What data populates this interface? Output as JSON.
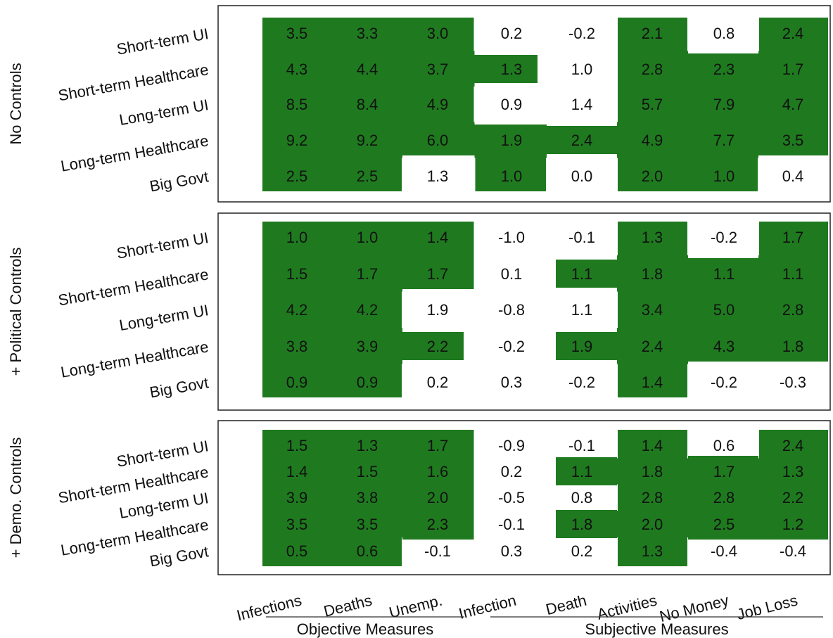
{
  "chart_data": {
    "type": "heatmap",
    "title": "",
    "columns": [
      "Infections",
      "Deaths",
      "Unemp.",
      "Infection",
      "Death",
      "Activities",
      "No Money",
      "Job Loss"
    ],
    "column_groups": [
      {
        "label": "Objective Measures",
        "columns": [
          "Infections",
          "Deaths",
          "Unemp."
        ]
      },
      {
        "label": "Subjective Measures",
        "columns": [
          "Infection",
          "Death",
          "Activities",
          "No Money",
          "Job Loss"
        ]
      }
    ],
    "rows": [
      "Short-term UI",
      "Short-term Healthcare",
      "Long-term UI",
      "Long-term Healthcare",
      "Big Govt"
    ],
    "highlight_color": "#1f7a1f",
    "panels": [
      {
        "label": "No Controls",
        "values": [
          [
            3.5,
            3.3,
            3.0,
            0.2,
            -0.2,
            2.1,
            0.8,
            2.4
          ],
          [
            4.3,
            4.4,
            3.7,
            1.3,
            1.0,
            2.8,
            2.3,
            1.7
          ],
          [
            8.5,
            8.4,
            4.9,
            0.9,
            1.4,
            5.7,
            7.9,
            4.7
          ],
          [
            9.2,
            9.2,
            6.0,
            1.9,
            2.4,
            4.9,
            7.7,
            3.5
          ],
          [
            2.5,
            2.5,
            1.3,
            1.0,
            0.0,
            2.0,
            1.0,
            0.4
          ]
        ],
        "display": [
          [
            "3.5",
            "3.3",
            "3.0",
            "0.2",
            "-0.2",
            "2.1",
            "0.8",
            "2.4"
          ],
          [
            "4.3",
            "4.4",
            "3.7",
            "1.3",
            "1.0",
            "2.8",
            "2.3",
            "1.7"
          ],
          [
            "8.5",
            "8.4",
            "4.9",
            "0.9",
            "1.4",
            "5.7",
            "7.9",
            "4.7"
          ],
          [
            "9.2",
            "9.2",
            "6.0",
            "1.9",
            "2.4",
            "4.9",
            "7.7",
            "3.5"
          ],
          [
            "2.5",
            "2.5",
            "1.3",
            "1.0",
            "0.0",
            "2.0",
            "1.0",
            "0.4"
          ]
        ],
        "highlighted": [
          [
            1,
            1,
            1,
            0,
            0,
            1,
            0,
            1
          ],
          [
            1,
            1,
            1,
            1,
            0,
            1,
            1,
            1
          ],
          [
            1,
            1,
            1,
            0,
            0,
            1,
            1,
            1
          ],
          [
            1,
            1,
            1,
            1,
            1,
            1,
            1,
            1
          ],
          [
            1,
            1,
            0,
            1,
            0,
            1,
            1,
            0
          ]
        ]
      },
      {
        "label": "+ Political Controls",
        "values": [
          [
            1.0,
            1.0,
            1.4,
            -1.0,
            -0.1,
            1.3,
            -0.2,
            1.7
          ],
          [
            1.5,
            1.7,
            1.7,
            0.1,
            1.1,
            1.8,
            1.1,
            1.1
          ],
          [
            4.2,
            4.2,
            1.9,
            -0.8,
            1.1,
            3.4,
            5.0,
            2.8
          ],
          [
            3.8,
            3.9,
            2.2,
            -0.2,
            1.9,
            2.4,
            4.3,
            1.8
          ],
          [
            0.9,
            0.9,
            0.2,
            0.3,
            -0.2,
            1.4,
            -0.2,
            -0.3
          ]
        ],
        "display": [
          [
            "1.0",
            "1.0",
            "1.4",
            "-1.0",
            "-0.1",
            "1.3",
            "-0.2",
            "1.7"
          ],
          [
            "1.5",
            "1.7",
            "1.7",
            "0.1",
            "1.1",
            "1.8",
            "1.1",
            "1.1"
          ],
          [
            "4.2",
            "4.2",
            "1.9",
            "-0.8",
            "1.1",
            "3.4",
            "5.0",
            "2.8"
          ],
          [
            "3.8",
            "3.9",
            "2.2",
            "-0.2",
            "1.9",
            "2.4",
            "4.3",
            "1.8"
          ],
          [
            "0.9",
            "0.9",
            "0.2",
            "0.3",
            "-0.2",
            "1.4",
            "-0.2",
            "-0.3"
          ]
        ],
        "highlighted": [
          [
            1,
            1,
            1,
            0,
            0,
            1,
            0,
            1
          ],
          [
            1,
            1,
            1,
            0,
            1,
            1,
            1,
            1
          ],
          [
            1,
            1,
            0,
            0,
            0,
            1,
            1,
            1
          ],
          [
            1,
            1,
            1,
            0,
            1,
            1,
            1,
            1
          ],
          [
            1,
            1,
            0,
            0,
            0,
            1,
            0,
            0
          ]
        ]
      },
      {
        "label": "+ Demo. Controls",
        "values": [
          [
            1.5,
            1.3,
            1.7,
            -0.9,
            -0.1,
            1.4,
            0.6,
            2.4
          ],
          [
            1.4,
            1.5,
            1.6,
            0.2,
            1.1,
            1.8,
            1.7,
            1.3
          ],
          [
            3.9,
            3.8,
            2.0,
            -0.5,
            0.8,
            2.8,
            2.8,
            2.2
          ],
          [
            3.5,
            3.5,
            2.3,
            -0.1,
            1.8,
            2.0,
            2.5,
            1.2
          ],
          [
            0.5,
            0.6,
            -0.1,
            0.3,
            0.2,
            1.3,
            -0.4,
            -0.4
          ]
        ],
        "display": [
          [
            "1.5",
            "1.3",
            "1.7",
            "-0.9",
            "-0.1",
            "1.4",
            "0.6",
            "2.4"
          ],
          [
            "1.4",
            "1.5",
            "1.6",
            "0.2",
            "1.1",
            "1.8",
            "1.7",
            "1.3"
          ],
          [
            "3.9",
            "3.8",
            "2.0",
            "-0.5",
            "0.8",
            "2.8",
            "2.8",
            "2.2"
          ],
          [
            "3.5",
            "3.5",
            "2.3",
            "-0.1",
            "1.8",
            "2.0",
            "2.5",
            "1.2"
          ],
          [
            "0.5",
            "0.6",
            "-0.1",
            "0.3",
            "0.2",
            "1.3",
            "-0.4",
            "-0.4"
          ]
        ],
        "highlighted": [
          [
            1,
            1,
            1,
            0,
            0,
            1,
            0,
            1
          ],
          [
            1,
            1,
            1,
            0,
            1,
            1,
            1,
            1
          ],
          [
            1,
            1,
            1,
            0,
            0,
            1,
            1,
            1
          ],
          [
            1,
            1,
            1,
            0,
            1,
            1,
            1,
            1
          ],
          [
            1,
            1,
            0,
            0,
            0,
            1,
            0,
            0
          ]
        ]
      }
    ]
  }
}
